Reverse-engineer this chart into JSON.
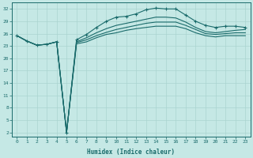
{
  "xlabel": "Humidex (Indice chaleur)",
  "bg_color": "#c5e8e5",
  "line_color": "#1a6b6b",
  "grid_color": "#aad4d0",
  "x_min": 0,
  "x_max": 23,
  "y_min": 2,
  "y_max": 32,
  "y_ticks": [
    2,
    5,
    8,
    11,
    14,
    17,
    20,
    23,
    26,
    29,
    32
  ],
  "x_ticks": [
    0,
    1,
    2,
    3,
    4,
    5,
    6,
    7,
    8,
    9,
    10,
    11,
    12,
    13,
    14,
    15,
    16,
    17,
    18,
    19,
    20,
    21,
    22,
    23
  ],
  "series": [
    {
      "x": [
        0,
        1,
        2,
        3,
        4,
        5,
        6,
        7,
        8,
        9,
        10,
        11,
        12,
        13,
        14,
        15,
        16,
        17,
        18,
        19,
        20,
        21,
        22,
        23
      ],
      "y": [
        25.5,
        24.2,
        23.2,
        23.4,
        24.0,
        2.0,
        24.5,
        25.8,
        27.5,
        29.0,
        30.0,
        30.2,
        30.8,
        31.8,
        32.2,
        32.0,
        32.0,
        30.5,
        29.0,
        28.0,
        27.5,
        27.8,
        27.8,
        27.5
      ],
      "marker": "+",
      "markersize": 3.5,
      "linewidth": 0.8
    },
    {
      "x": [
        0,
        1,
        2,
        3,
        4,
        5,
        6,
        7,
        8,
        9,
        10,
        11,
        12,
        13,
        14,
        15,
        16,
        17,
        18,
        19,
        20,
        21,
        22,
        23
      ],
      "y": [
        25.5,
        24.2,
        23.2,
        23.4,
        24.0,
        2.0,
        24.0,
        25.0,
        26.2,
        27.2,
        28.0,
        28.5,
        29.0,
        29.5,
        30.0,
        30.0,
        29.8,
        28.8,
        27.5,
        26.5,
        26.2,
        26.5,
        26.8,
        27.0
      ],
      "marker": null,
      "linewidth": 0.8
    },
    {
      "x": [
        0,
        1,
        2,
        3,
        4,
        5,
        6,
        7,
        8,
        9,
        10,
        11,
        12,
        13,
        14,
        15,
        16,
        17,
        18,
        19,
        20,
        21,
        22,
        23
      ],
      "y": [
        25.5,
        24.2,
        23.2,
        23.4,
        24.0,
        2.0,
        23.8,
        24.5,
        25.5,
        26.3,
        27.0,
        27.5,
        28.0,
        28.5,
        28.8,
        28.8,
        28.8,
        28.0,
        27.0,
        26.0,
        25.8,
        26.0,
        26.2,
        26.2
      ],
      "marker": null,
      "linewidth": 0.8
    },
    {
      "x": [
        0,
        1,
        2,
        3,
        4,
        5,
        6,
        7,
        8,
        9,
        10,
        11,
        12,
        13,
        14,
        15,
        16,
        17,
        18,
        19,
        20,
        21,
        22,
        23
      ],
      "y": [
        25.5,
        24.2,
        23.2,
        23.4,
        24.0,
        2.0,
        23.5,
        24.0,
        25.0,
        25.8,
        26.2,
        26.8,
        27.2,
        27.5,
        27.8,
        27.8,
        27.8,
        27.2,
        26.2,
        25.5,
        25.2,
        25.5,
        25.5,
        25.5
      ],
      "marker": null,
      "linewidth": 0.8
    }
  ]
}
